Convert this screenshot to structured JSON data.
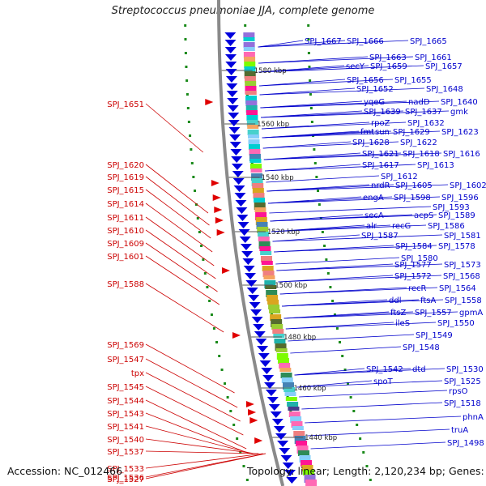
{
  "title": "Streptococcus pneumoniae JJA, complete genome",
  "accession_text": "Accession: NC_012466",
  "topology_text": "Topology: linear; Length: 2,120,234 bp; Genes: 2,193",
  "colors": {
    "forward_arrow": "#e00000",
    "reverse_arrow": "#0000dd",
    "label_left": "#cc0000",
    "label_right": "#0000cc",
    "backbone": "#8a8a8a",
    "dots": "#1a8a1a"
  },
  "scale_labels": [
    "1580 kbp",
    "1560 kbp",
    "1540 kbp",
    "1520 kbp",
    "1500 kbp",
    "1480 kbp",
    "1460 kbp",
    "1440 kbp"
  ],
  "left_labels": [
    "SPJ_1651",
    "SPJ_1620",
    "SPJ_1619",
    "SPJ_1615",
    "SPJ_1614",
    "SPJ_1611",
    "SPJ_1610",
    "SPJ_1609",
    "SPJ_1601",
    "SPJ_1588",
    "SPJ_1569",
    "SPJ_1547",
    "tpx",
    "SPJ_1545",
    "SPJ_1544",
    "SPJ_1543",
    "SPJ_1541",
    "SPJ_1540",
    "SPJ_1537",
    "SPJ_1533",
    "SPJ_1536",
    "SPJ_1527"
  ],
  "right_labels": [
    "SPJ_1667",
    "SPJ_1666",
    "SPJ_1665",
    "SPJ_1663",
    "SPJ_1661",
    "secY",
    "SPJ_1659",
    "SPJ_1657",
    "SPJ_1656",
    "SPJ_1655",
    "SPJ_1652",
    "SPJ_1648",
    "yqeG",
    "nadD",
    "SPJ_1640",
    "SPJ_1639",
    "SPJ_1637",
    "gmk",
    "rpoZ",
    "SPJ_1632",
    "fmt",
    "sun",
    "SPJ_1629",
    "SPJ_1623",
    "SPJ_1628",
    "SPJ_1622",
    "SPJ_1621",
    "SPJ_1618",
    "SPJ_1616",
    "SPJ_1617",
    "SPJ_1613",
    "SPJ_1612",
    "SPJ_1602",
    "nrdR",
    "SPJ_1605",
    "SPJ_1596",
    "engA",
    "SPJ_1598",
    "SPJ_1593",
    "secA",
    "acpS",
    "SPJ_1589",
    "alr",
    "recG",
    "SPJ_1587",
    "SPJ_1586",
    "SPJ_1581",
    "SPJ_1584",
    "SPJ_1578",
    "SPJ_1580",
    "SPJ_1573",
    "SPJ_1577",
    "SPJ_1568",
    "SPJ_1572",
    "SPJ_1564",
    "recR",
    "ddl",
    "ftsA",
    "SPJ_1558",
    "ftsZ",
    "SPJ_1557",
    "gpmA",
    "ileS",
    "SPJ_1550",
    "SPJ_1549",
    "SPJ_1548",
    "SPJ_1530",
    "SPJ_1542",
    "dtd",
    "spoT",
    "SPJ_1525",
    "rpsO",
    "SPJ_1518",
    "phnA",
    "truA",
    "SPJ_1498"
  ]
}
